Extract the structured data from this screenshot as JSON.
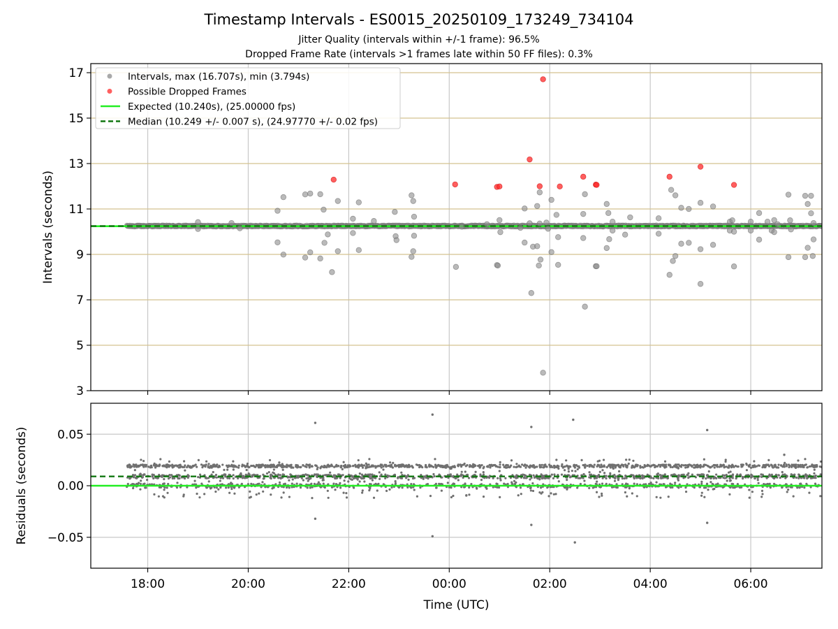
{
  "figure": {
    "title": "Timestamp Intervals - ES0015_20250109_173249_734104",
    "subtitle_1": "Jitter Quality (intervals within +/-1 frame): 96.5%",
    "subtitle_2": "Dropped Frame Rate (intervals >1 frames late within 50 FF files): 0.3%"
  },
  "chart_data": [
    {
      "type": "scatter",
      "ylabel": "Intervals (seconds)",
      "xlabel": "",
      "xlim": [
        "16:52",
        "07:25"
      ],
      "ylim": [
        3,
        17.4
      ],
      "yticks": [
        3,
        5,
        7,
        9,
        11,
        13,
        15,
        17
      ],
      "xticks": [
        "18:00",
        "20:00",
        "22:00",
        "00:00",
        "02:00",
        "04:00",
        "06:00"
      ],
      "hlines": [
        5,
        7,
        9,
        11,
        13,
        15,
        17
      ],
      "hline_color": "#d4c28f",
      "grid": true,
      "legend_position": "upper-left",
      "legend": [
        {
          "label": "Intervals, max (16.707s), min (3.794s)",
          "marker": "circle",
          "color": "#8c8c8c"
        },
        {
          "label": "Possible Dropped Frames",
          "marker": "circle",
          "color": "#ff2a2a"
        },
        {
          "label": "Expected (10.240s), (25.00000 fps)",
          "marker": "solid-line",
          "color": "#22ee22"
        },
        {
          "label": "Median (10.249 +/- 0.007 s), (24.97770 +/- 0.02 fps)",
          "marker": "dashed-line",
          "color": "#117711"
        }
      ],
      "expected_line": 10.24,
      "median_line": 10.249,
      "series": [
        {
          "name": "Intervals, max (16.707s), min (3.794s)",
          "color": "#8c8c8c",
          "band": {
            "x_start": "17:35",
            "x_end": "07:25",
            "y": 10.249
          },
          "points": [
            [
              "19:00",
              10.42
            ],
            [
              "19:00",
              10.12
            ],
            [
              "19:40",
              10.38
            ],
            [
              "19:50",
              10.15
            ],
            [
              "20:35",
              10.92
            ],
            [
              "20:35",
              9.53
            ],
            [
              "20:42",
              11.52
            ],
            [
              "20:42",
              8.99
            ],
            [
              "21:08",
              11.64
            ],
            [
              "21:08",
              8.86
            ],
            [
              "21:14",
              11.68
            ],
            [
              "21:14",
              9.09
            ],
            [
              "21:26",
              11.65
            ],
            [
              "21:26",
              8.82
            ],
            [
              "21:30",
              10.97
            ],
            [
              "21:31",
              9.51
            ],
            [
              "21:35",
              9.88
            ],
            [
              "21:40",
              8.22
            ],
            [
              "21:47",
              11.35
            ],
            [
              "21:47",
              9.14
            ],
            [
              "22:05",
              10.57
            ],
            [
              "22:05",
              9.94
            ],
            [
              "22:12",
              11.29
            ],
            [
              "22:12",
              9.19
            ],
            [
              "22:30",
              10.47
            ],
            [
              "22:55",
              10.87
            ],
            [
              "22:56",
              9.8
            ],
            [
              "22:57",
              9.63
            ],
            [
              "23:15",
              11.6
            ],
            [
              "23:15",
              8.89
            ],
            [
              "23:17",
              11.35
            ],
            [
              "23:17",
              9.14
            ],
            [
              "23:18",
              10.66
            ],
            [
              "23:18",
              9.82
            ],
            [
              "00:08",
              8.45
            ],
            [
              "00:15",
              10.22
            ],
            [
              "00:45",
              10.33
            ],
            [
              "00:57",
              8.53
            ],
            [
              "00:58",
              8.51
            ],
            [
              "01:00",
              10.51
            ],
            [
              "01:01",
              9.98
            ],
            [
              "01:25",
              10.17
            ],
            [
              "01:30",
              9.52
            ],
            [
              "01:30",
              11.02
            ],
            [
              "01:36",
              10.37
            ],
            [
              "01:38",
              7.3
            ],
            [
              "01:40",
              9.34
            ],
            [
              "01:45",
              11.13
            ],
            [
              "01:45",
              9.36
            ],
            [
              "01:47",
              8.51
            ],
            [
              "01:48",
              10.36
            ],
            [
              "01:48",
              11.73
            ],
            [
              "01:49",
              8.77
            ],
            [
              "01:52",
              3.79
            ],
            [
              "01:56",
              10.4
            ],
            [
              "01:58",
              10.13
            ],
            [
              "02:02",
              11.4
            ],
            [
              "02:02",
              9.1
            ],
            [
              "02:08",
              10.74
            ],
            [
              "02:10",
              8.54
            ],
            [
              "02:10",
              9.76
            ],
            [
              "02:40",
              10.78
            ],
            [
              "02:40",
              9.72
            ],
            [
              "02:42",
              11.65
            ],
            [
              "02:42",
              6.7
            ],
            [
              "02:55",
              8.48
            ],
            [
              "02:56",
              8.48
            ],
            [
              "03:08",
              11.22
            ],
            [
              "03:08",
              9.28
            ],
            [
              "03:10",
              10.82
            ],
            [
              "03:11",
              9.67
            ],
            [
              "03:15",
              10.44
            ],
            [
              "03:15",
              10.05
            ],
            [
              "03:30",
              9.87
            ],
            [
              "03:36",
              10.63
            ],
            [
              "04:10",
              10.59
            ],
            [
              "04:10",
              9.91
            ],
            [
              "04:23",
              8.1
            ],
            [
              "04:25",
              11.84
            ],
            [
              "04:27",
              8.71
            ],
            [
              "04:30",
              11.6
            ],
            [
              "04:30",
              8.93
            ],
            [
              "04:37",
              11.05
            ],
            [
              "04:37",
              9.47
            ],
            [
              "04:46",
              11.0
            ],
            [
              "04:46",
              9.51
            ],
            [
              "05:00",
              11.27
            ],
            [
              "05:00",
              9.23
            ],
            [
              "05:00",
              7.7
            ],
            [
              "05:15",
              11.11
            ],
            [
              "05:15",
              9.42
            ],
            [
              "05:35",
              10.44
            ],
            [
              "05:35",
              10.05
            ],
            [
              "05:38",
              10.5
            ],
            [
              "05:40",
              10.0
            ],
            [
              "05:40",
              8.47
            ],
            [
              "06:00",
              10.44
            ],
            [
              "06:00",
              10.05
            ],
            [
              "06:10",
              10.82
            ],
            [
              "06:10",
              9.65
            ],
            [
              "06:20",
              10.44
            ],
            [
              "06:25",
              10.05
            ],
            [
              "06:28",
              10.51
            ],
            [
              "06:28",
              9.98
            ],
            [
              "06:32",
              10.33
            ],
            [
              "06:45",
              11.63
            ],
            [
              "06:45",
              8.88
            ],
            [
              "06:47",
              10.5
            ],
            [
              "06:48",
              10.1
            ],
            [
              "07:05",
              11.58
            ],
            [
              "07:05",
              8.88
            ],
            [
              "07:08",
              11.22
            ],
            [
              "07:08",
              9.29
            ],
            [
              "07:12",
              11.58
            ],
            [
              "07:12",
              10.81
            ],
            [
              "07:14",
              8.93
            ],
            [
              "07:15",
              9.66
            ],
            [
              "07:15",
              10.38
            ]
          ]
        },
        {
          "name": "Possible Dropped Frames",
          "color": "#ff2a2a",
          "points": [
            [
              "21:42",
              12.29
            ],
            [
              "00:07",
              12.08
            ],
            [
              "00:57",
              11.97
            ],
            [
              "01:00",
              11.99
            ],
            [
              "01:36",
              13.18
            ],
            [
              "01:48",
              12.0
            ],
            [
              "01:52",
              16.71
            ],
            [
              "02:12",
              11.99
            ],
            [
              "02:40",
              12.42
            ],
            [
              "02:55",
              12.07
            ],
            [
              "02:56",
              12.06
            ],
            [
              "04:23",
              12.42
            ],
            [
              "04:60",
              12.86
            ],
            [
              "05:40",
              12.06
            ]
          ]
        }
      ]
    },
    {
      "type": "scatter",
      "ylabel": "Residuals (seconds)",
      "xlabel": "Time (UTC)",
      "xlim": [
        "16:52",
        "07:25"
      ],
      "ylim": [
        -0.08,
        0.08
      ],
      "yticks": [
        -0.05,
        0.0,
        0.05
      ],
      "ytick_labels": [
        "−0.05",
        "0.00",
        "0.05"
      ],
      "xticks": [
        "18:00",
        "20:00",
        "22:00",
        "00:00",
        "02:00",
        "04:00",
        "06:00"
      ],
      "grid": true,
      "expected_line": 0.0,
      "median_line": 0.009,
      "series": [
        {
          "name": "Residuals",
          "color": "#707070",
          "band": {
            "x_start": "17:35",
            "x_end": "07:25",
            "y_min": -0.012,
            "y_max": 0.026
          },
          "points": [
            [
              "21:20",
              0.061
            ],
            [
              "21:20",
              -0.032
            ],
            [
              "23:40",
              0.069
            ],
            [
              "23:40",
              -0.049
            ],
            [
              "01:38",
              0.057
            ],
            [
              "01:38",
              -0.038
            ],
            [
              "02:28",
              0.064
            ],
            [
              "02:30",
              -0.055
            ],
            [
              "05:08",
              0.054
            ],
            [
              "05:08",
              -0.036
            ],
            [
              "06:40",
              0.03
            ]
          ]
        }
      ]
    }
  ]
}
